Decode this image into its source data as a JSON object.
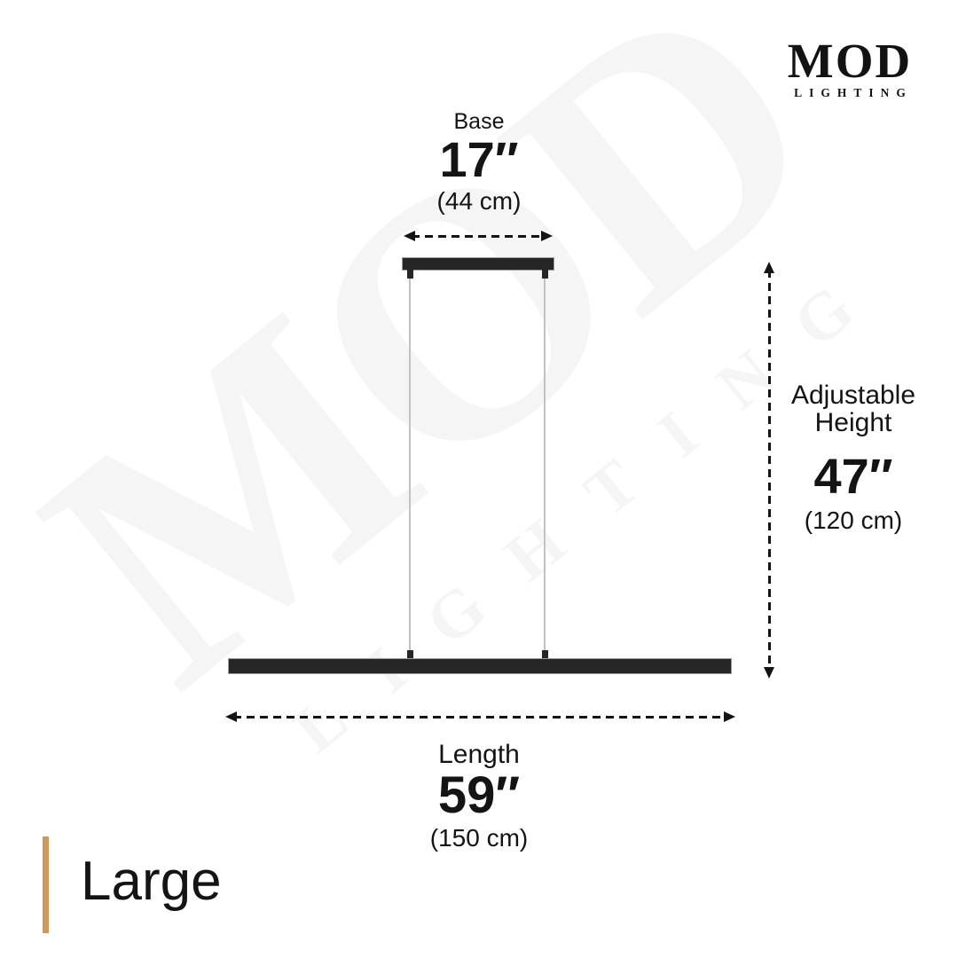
{
  "brand": {
    "name": "MOD",
    "tagline": "LIGHTING"
  },
  "watermark": {
    "name": "MOD",
    "tagline": "LIGHTING"
  },
  "dimensions": {
    "base": {
      "label": "Base",
      "inches": "17″",
      "cm": "(44 cm)"
    },
    "adjustable_height": {
      "label": "Adjustable Height",
      "inches": "47″",
      "cm": "(120 cm)"
    },
    "length": {
      "label": "Length",
      "inches": "59″",
      "cm": "(150 cm)"
    }
  },
  "product": {
    "size_label": "Large"
  },
  "colors": {
    "accent": "#C89A5F",
    "ink": "#141414",
    "fixture": "#262626",
    "wire": "#C2C2C2",
    "background": "#FFFFFF"
  }
}
